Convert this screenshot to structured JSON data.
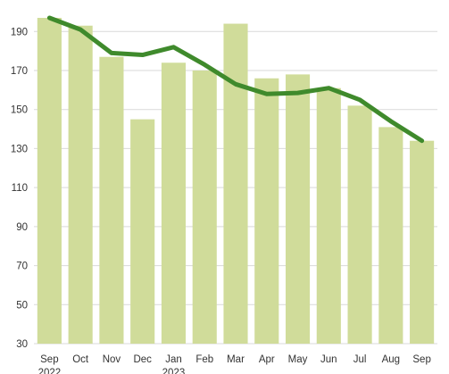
{
  "chart_data": {
    "type": "bar",
    "categories": [
      "Sep",
      "Oct",
      "Nov",
      "Dec",
      "Jan",
      "Feb",
      "Mar",
      "Apr",
      "May",
      "Jun",
      "Jul",
      "Aug",
      "Sep"
    ],
    "year_labels": [
      "2022",
      "",
      "",
      "",
      "2023",
      "",
      "",
      "",
      "",
      "",
      "",
      "",
      ""
    ],
    "series": [
      {
        "type": "bar",
        "values": [
          197,
          193,
          177,
          145,
          174,
          170,
          194,
          166,
          168,
          161,
          152,
          141,
          134
        ]
      },
      {
        "type": "line",
        "values": [
          197,
          191,
          179,
          178,
          182,
          173,
          163,
          158,
          158.5,
          161,
          155,
          144,
          134
        ]
      }
    ],
    "yticks": [
      30,
      50,
      70,
      90,
      110,
      130,
      150,
      170,
      190
    ],
    "ylim": [
      30,
      197
    ],
    "grid": true,
    "title": "",
    "xlabel": "",
    "ylabel": "",
    "colors": {
      "bar": "#d0dc9a",
      "line": "#3f8a2c",
      "grid": "#d9d9d9"
    }
  }
}
